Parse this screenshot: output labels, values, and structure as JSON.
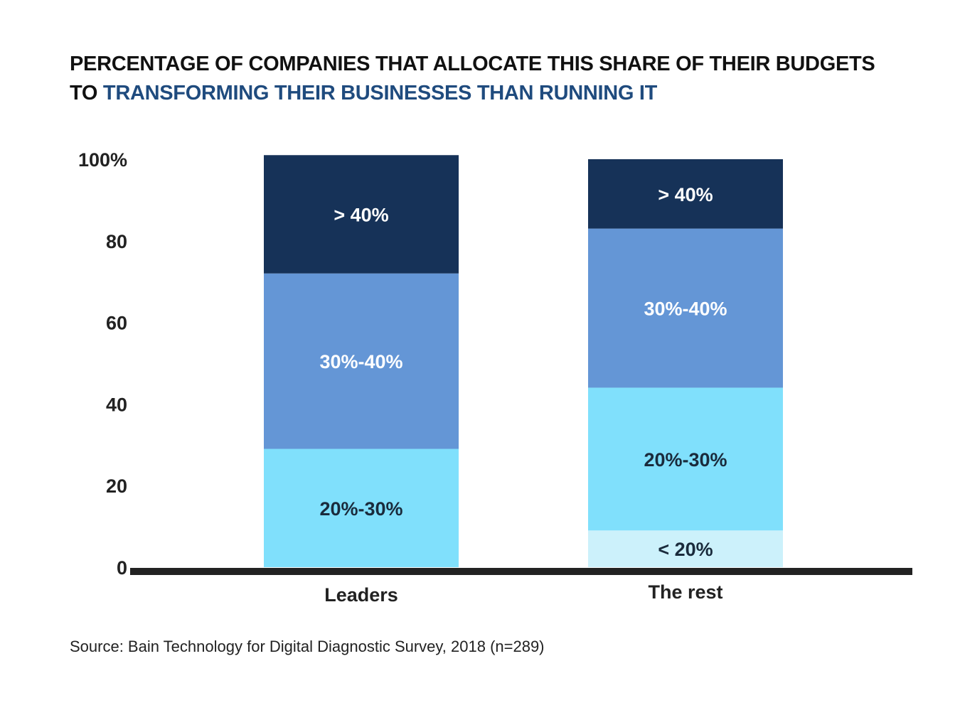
{
  "title": {
    "line1": "PERCENTAGE OF COMPANIES THAT ALLOCATE THIS SHARE OF THEIR BUDGETS",
    "line2_prefix": "TO ",
    "line2_highlight": "TRANSFORMING THEIR BUSINESSES THAN RUNNING IT"
  },
  "source": "Source: Bain Technology for Digital Diagnostic Survey, 2018 (n=289)",
  "colors": {
    "title_highlight": "#1f4b7e",
    "baseline": "#222222"
  },
  "chart_data": {
    "type": "bar",
    "stacked": true,
    "categories": [
      "Leaders",
      "The rest"
    ],
    "ylim": [
      0,
      100
    ],
    "yticks": [
      0,
      20,
      40,
      60,
      80,
      100
    ],
    "ytick_labels": [
      "0",
      "20",
      "40",
      "60",
      "80",
      "100%"
    ],
    "grid": false,
    "series": [
      {
        "name": "< 20%",
        "values": [
          0,
          9
        ],
        "color": "#ccf1fb",
        "label_color": "#1a2b3c"
      },
      {
        "name": "20%-30%",
        "values": [
          29,
          35
        ],
        "color": "#80e0fc",
        "label_color": "#1a2b3c"
      },
      {
        "name": "30%-40%",
        "values": [
          43,
          39
        ],
        "color": "#6496d6",
        "label_color": "#ffffff"
      },
      {
        "name": "> 40%",
        "values": [
          29,
          17
        ],
        "color": "#163258",
        "label_color": "#ffffff"
      }
    ]
  }
}
